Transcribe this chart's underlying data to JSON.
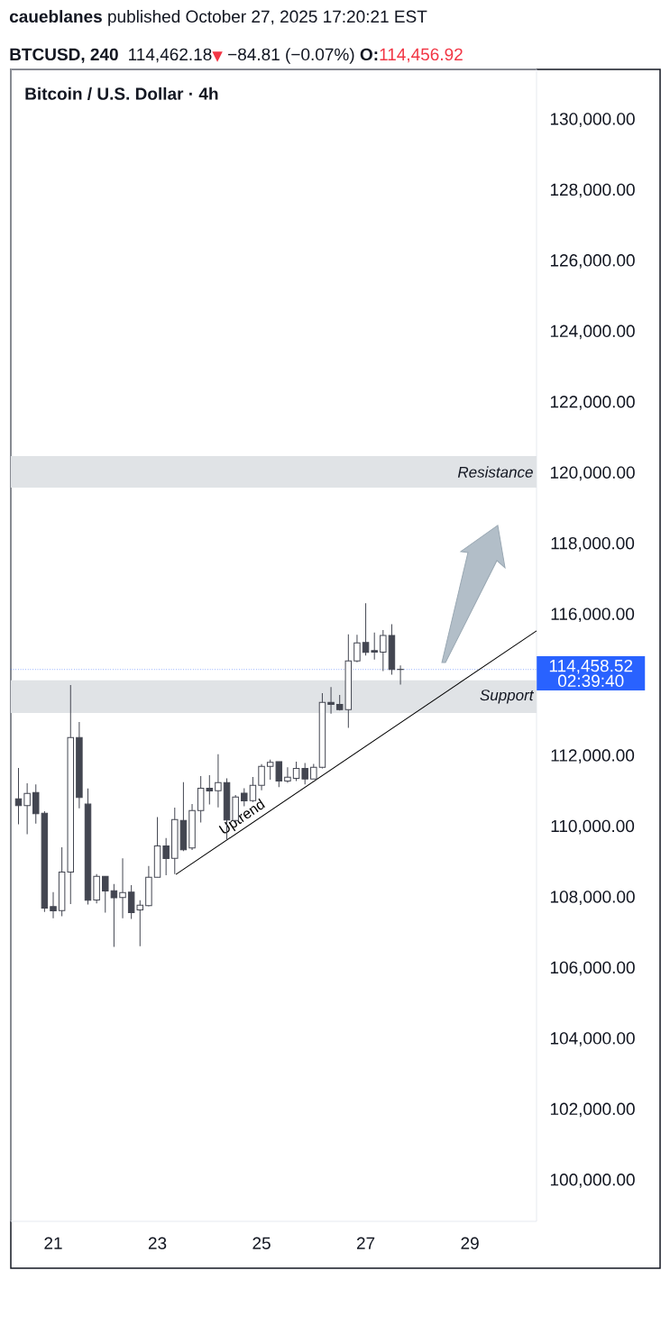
{
  "chart_data": {
    "type": "candlestick",
    "title": "Bitcoin / U.S. Dollar · 4h",
    "x": [
      "2025-10-20T08:00",
      "2025-10-20T12:00",
      "2025-10-20T16:00",
      "2025-10-20T20:00",
      "2025-10-21T00:00",
      "2025-10-21T04:00",
      "2025-10-21T08:00",
      "2025-10-21T12:00",
      "2025-10-21T16:00",
      "2025-10-21T20:00",
      "2025-10-22T00:00",
      "2025-10-22T04:00",
      "2025-10-22T08:00",
      "2025-10-22T12:00",
      "2025-10-22T16:00",
      "2025-10-22T20:00",
      "2025-10-23T00:00",
      "2025-10-23T04:00",
      "2025-10-23T08:00",
      "2025-10-23T12:00",
      "2025-10-23T16:00",
      "2025-10-23T20:00",
      "2025-10-24T00:00",
      "2025-10-24T04:00",
      "2025-10-24T08:00",
      "2025-10-24T12:00",
      "2025-10-24T16:00",
      "2025-10-24T20:00",
      "2025-10-25T00:00",
      "2025-10-25T04:00",
      "2025-10-25T08:00",
      "2025-10-25T12:00",
      "2025-10-25T16:00",
      "2025-10-25T20:00",
      "2025-10-26T00:00",
      "2025-10-26T04:00",
      "2025-10-26T08:00",
      "2025-10-26T12:00",
      "2025-10-26T16:00",
      "2025-10-26T20:00",
      "2025-10-27T00:00",
      "2025-10-27T04:00",
      "2025-10-27T08:00",
      "2025-10-27T12:00",
      "2025-10-27T16:00"
    ],
    "ohlc": [
      [
        110800,
        111670,
        110080,
        110610
      ],
      [
        110610,
        111240,
        109800,
        110950
      ],
      [
        110980,
        111210,
        110100,
        110380
      ],
      [
        110390,
        110450,
        107600,
        107710
      ],
      [
        107750,
        108160,
        107420,
        107630
      ],
      [
        107640,
        109430,
        107480,
        108730
      ],
      [
        108730,
        114020,
        107820,
        112530
      ],
      [
        112530,
        112970,
        110530,
        110840
      ],
      [
        110650,
        111090,
        107810,
        107930
      ],
      [
        107940,
        108670,
        107840,
        108610
      ],
      [
        108610,
        108610,
        107580,
        108190
      ],
      [
        108200,
        108390,
        106610,
        108000
      ],
      [
        108010,
        109120,
        107420,
        108150
      ],
      [
        108160,
        108360,
        107400,
        107580
      ],
      [
        107660,
        107930,
        106630,
        107790
      ],
      [
        107780,
        108900,
        107760,
        108580
      ],
      [
        108580,
        110280,
        108580,
        109470
      ],
      [
        109470,
        109690,
        108640,
        109110
      ],
      [
        109120,
        110550,
        108670,
        110210
      ],
      [
        110190,
        111270,
        109320,
        109360
      ],
      [
        109410,
        110650,
        109350,
        110470
      ],
      [
        110470,
        111440,
        110130,
        111100
      ],
      [
        111100,
        111470,
        110640,
        111020
      ],
      [
        111030,
        112060,
        110560,
        111260
      ],
      [
        111260,
        111380,
        109640,
        110200
      ],
      [
        110190,
        110910,
        110100,
        110850
      ],
      [
        110960,
        111100,
        110590,
        110740
      ],
      [
        110750,
        111420,
        110710,
        111180
      ],
      [
        111180,
        111780,
        111040,
        111720
      ],
      [
        111720,
        111910,
        111340,
        111830
      ],
      [
        111850,
        111850,
        111130,
        111300
      ],
      [
        111300,
        111690,
        111250,
        111410
      ],
      [
        111380,
        111850,
        111300,
        111660
      ],
      [
        111660,
        111810,
        111210,
        111360
      ],
      [
        111360,
        111790,
        111360,
        111690
      ],
      [
        111690,
        113790,
        111660,
        113530
      ],
      [
        113530,
        113960,
        113210,
        113470
      ],
      [
        113470,
        113740,
        113300,
        113320
      ],
      [
        113320,
        115450,
        112810,
        114700
      ],
      [
        114700,
        115440,
        114660,
        115210
      ],
      [
        115220,
        116330,
        114850,
        114940
      ],
      [
        114990,
        115500,
        114740,
        114950
      ],
      [
        114950,
        115570,
        114410,
        115420
      ],
      [
        115420,
        115740,
        114310,
        114460
      ],
      [
        114456.92,
        114570,
        114030,
        114462.18
      ]
    ],
    "series": [
      {
        "type": "line",
        "name": "Uptrend",
        "color": "#000000",
        "x": [
          "2025-10-23T08:31",
          "2025-10-30T06:43"
        ],
        "values": [
          108660,
          115550
        ]
      }
    ],
    "xlim": [
      "2025-10-20T04:28",
      "2025-10-30T06:43"
    ],
    "ylim": [
      98850,
      131430
    ],
    "xticks": [
      {
        "value": "2025-10-21",
        "label": "21"
      },
      {
        "value": "2025-10-23",
        "label": "23"
      },
      {
        "value": "2025-10-25",
        "label": "25"
      },
      {
        "value": "2025-10-27",
        "label": "27"
      },
      {
        "value": "2025-10-29",
        "label": "29"
      }
    ],
    "yticks": [
      {
        "value": 100000,
        "label": "100,000.00"
      },
      {
        "value": 102000,
        "label": "102,000.00"
      },
      {
        "value": 104000,
        "label": "104,000.00"
      },
      {
        "value": 106000,
        "label": "106,000.00"
      },
      {
        "value": 108000,
        "label": "108,000.00"
      },
      {
        "value": 110000,
        "label": "110,000.00"
      },
      {
        "value": 112000,
        "label": "112,000.00"
      },
      {
        "value": 116000,
        "label": "116,000.00"
      },
      {
        "value": 118000,
        "label": "118,000.00"
      },
      {
        "value": 120000,
        "label": "120,000.00"
      },
      {
        "value": 122000,
        "label": "122,000.00"
      },
      {
        "value": 124000,
        "label": "124,000.00"
      },
      {
        "value": 126000,
        "label": "126,000.00"
      },
      {
        "value": 128000,
        "label": "128,000.00"
      },
      {
        "value": 130000,
        "label": "130,000.00"
      }
    ],
    "bands": [
      {
        "axis": "y",
        "from": 119600,
        "to": 120490,
        "label": "Resistance",
        "color": "#e0e3e6"
      },
      {
        "axis": "y",
        "from": 113230,
        "to": 114150,
        "label": "Support",
        "color": "#e0e3e6"
      }
    ],
    "ref_lines": [
      {
        "axis": "y",
        "value": 114458.52,
        "label": "114,458.52",
        "color": "#2962ff",
        "line_style": "dotted"
      }
    ],
    "annotations": [
      "**caueblanes** published October 27, 2025 17:20:21 EST",
      "BTCUSD, 240",
      "114,462.18",
      "▼",
      "−84.81 (−0.07%)",
      "O:",
      "114,456.92",
      "02:39:40"
    ]
  }
}
